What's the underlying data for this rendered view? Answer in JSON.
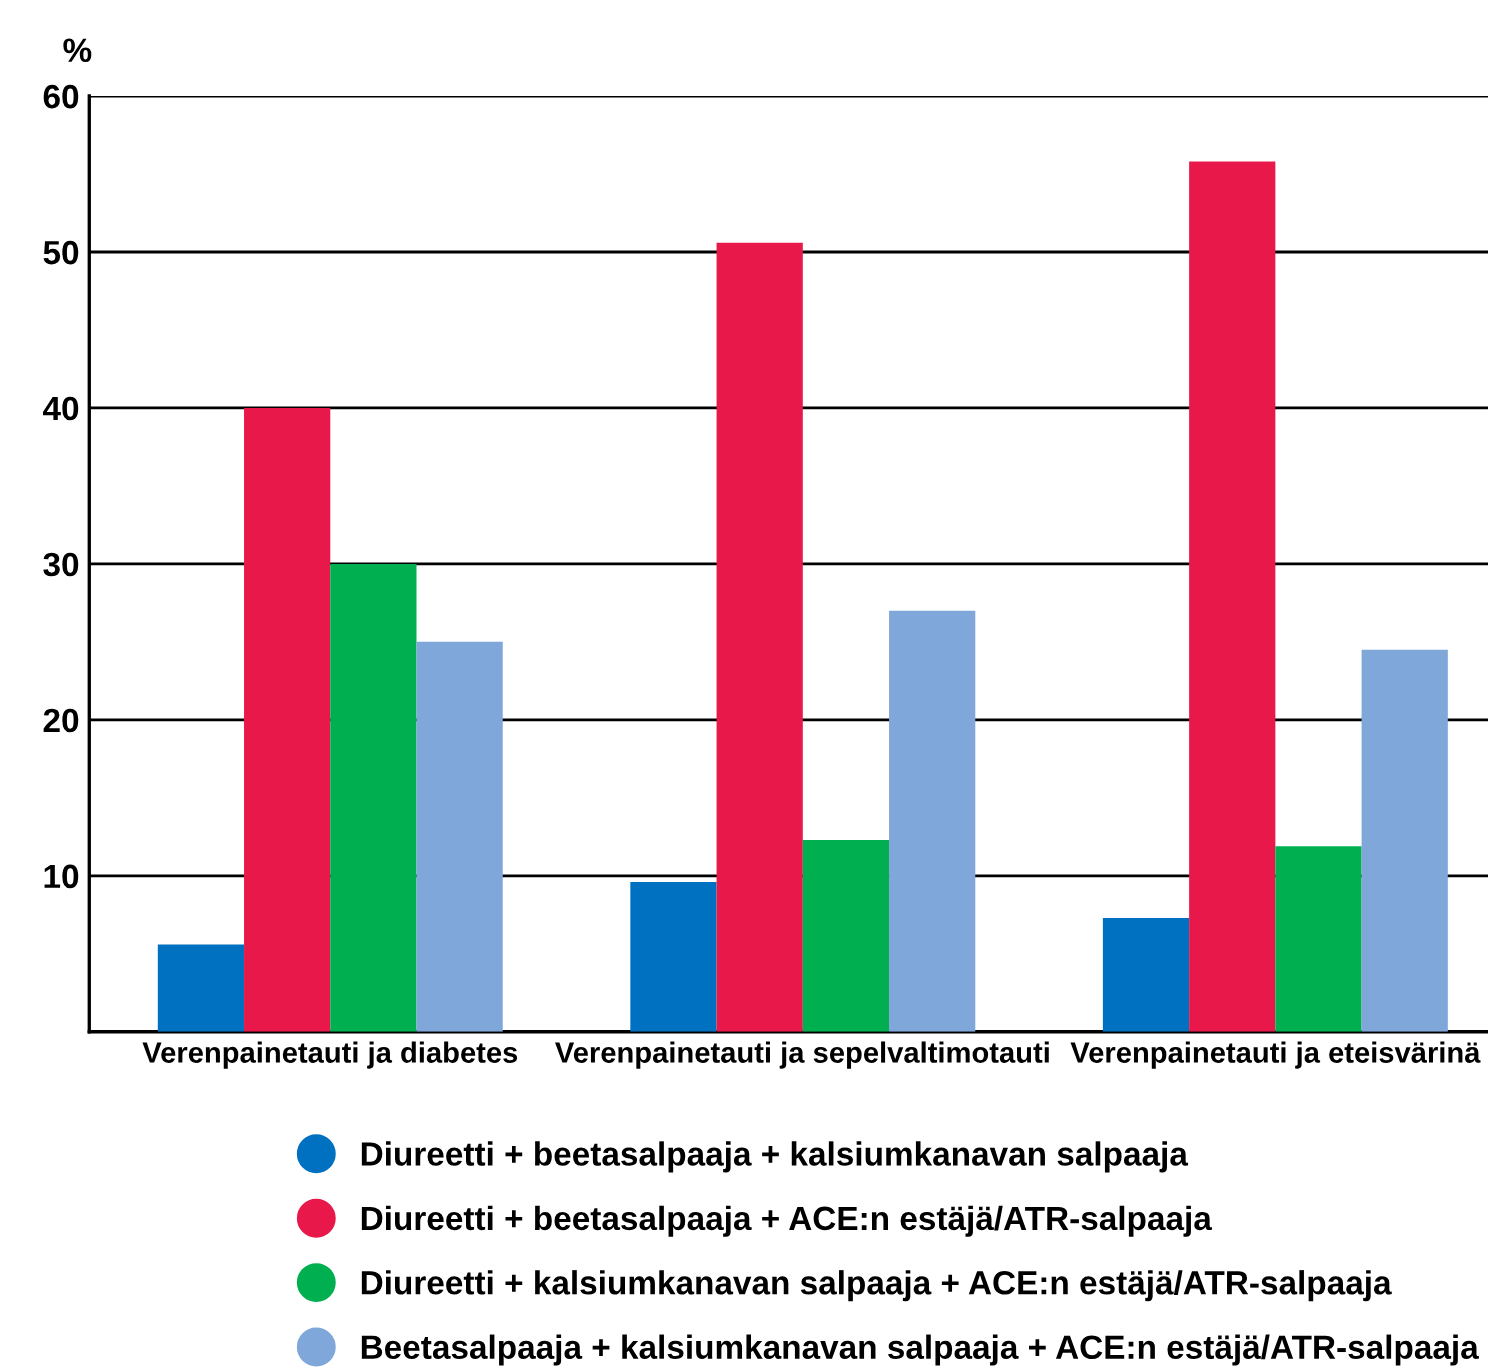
{
  "chart_data": {
    "type": "bar",
    "ylabel": "%",
    "categories": [
      "Verenpainetauti ja diabetes",
      "Verenpainetauti ja sepelvaltimotauti",
      "Verenpainetauti ja eteisvärinä"
    ],
    "series": [
      {
        "name": "Diureetti + beetasalpaaja + kalsiumkanavan salpaaja",
        "color": "#0070c0",
        "values": [
          5.6,
          9.6,
          7.3
        ]
      },
      {
        "name": "Diureetti + beetasalpaaja + ACE:n estäjä/ATR-salpaaja",
        "color": "#e8194a",
        "values": [
          40,
          50.6,
          55.8
        ]
      },
      {
        "name": "Diureetti + kalsiumkanavan salpaaja + ACE:n estäjä/ATR-salpaaja",
        "color": "#00b050",
        "values": [
          30,
          12.3,
          11.9
        ]
      },
      {
        "name": "Beetasalpaaja + kalsiumkanavan salpaaja + ACE:n estäjä/ATR-salpaaja",
        "color": "#7fa7d9",
        "values": [
          25,
          27,
          24.5
        ]
      }
    ],
    "ylim": [
      0,
      60
    ],
    "yticks": [
      10,
      20,
      30,
      40,
      50,
      60
    ],
    "grid": "y",
    "legend": "bottom"
  }
}
